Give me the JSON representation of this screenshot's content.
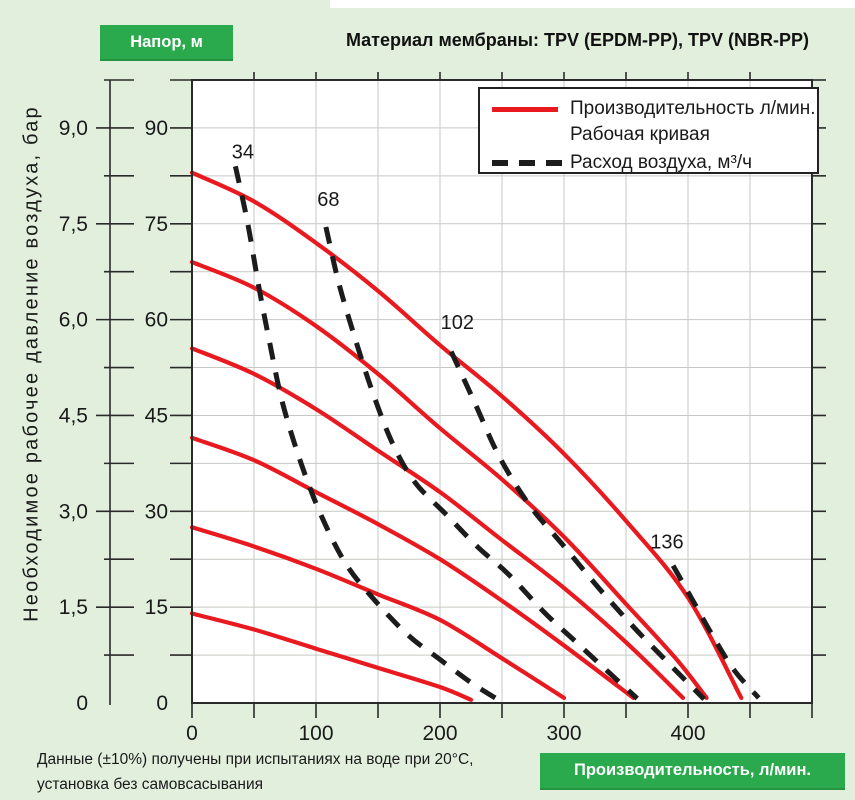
{
  "colors": {
    "background": "#e2efdd",
    "badge_green": "#2aa94d",
    "curve_red": "#e8191f",
    "dash_black": "#1c1c1c",
    "grid_gray": "#c6c9c4"
  },
  "header": {
    "head_badge": "Напор, м",
    "title": "Материал мембраны: TPV (EPDM-PP), TPV (NBR-PP)"
  },
  "legend": {
    "solid_label_line1": "Производительность л/мин.",
    "solid_label_line2": "Рабочая кривая",
    "dashed_label": "Расход воздуха, м³/ч"
  },
  "footnote": {
    "line1": "Данные (±10%) получены при испытаниях на воде при 20°C,",
    "line2": "установка без самовсасывания"
  },
  "x_badge": "Производительность, л/мин.",
  "chart_data": {
    "type": "line",
    "title": "Материал мембраны: TPV (EPDM-PP), TPV (NBR-PP)",
    "x_axis": {
      "label": "Производительность, л/мин.",
      "range": [
        0,
        500
      ],
      "major_ticks": [
        0,
        100,
        200,
        300,
        400
      ],
      "tick_labels": [
        "0",
        "100",
        "200",
        "300",
        "400"
      ],
      "minor_step": 50
    },
    "y_axis_pressure": {
      "label": "Необходимое рабочее давление воздуха, бар",
      "range": [
        0,
        9.75
      ],
      "major_ticks": [
        9.0,
        7.5,
        6.0,
        4.5,
        3.0,
        1.5,
        0
      ],
      "tick_labels": [
        "9,0",
        "7,5",
        "6,0",
        "4,5",
        "3,0",
        "1,5",
        "0"
      ],
      "minor_step": 0.75
    },
    "y_axis_head": {
      "label": "Напор, м",
      "major_ticks": [
        90,
        75,
        60,
        45,
        30,
        15,
        0
      ],
      "tick_labels": [
        "90",
        "75",
        "60",
        "45",
        "30",
        "15",
        "0"
      ]
    },
    "grid": {
      "x_step": 50,
      "y_step": 0.75,
      "on": true
    },
    "legend_position": "top-right",
    "solid_series": {
      "name": "Рабочая кривая — производительность, л/мин. (x) vs давление воздуха, бар (y)",
      "color": "#e8191f",
      "curves": [
        [
          [
            0,
            8.3
          ],
          [
            50,
            7.85
          ],
          [
            100,
            7.2
          ],
          [
            150,
            6.45
          ],
          [
            200,
            5.6
          ],
          [
            250,
            4.8
          ],
          [
            300,
            3.9
          ],
          [
            350,
            2.85
          ],
          [
            400,
            1.65
          ],
          [
            443,
            0.08
          ]
        ],
        [
          [
            0,
            6.9
          ],
          [
            50,
            6.5
          ],
          [
            100,
            5.9
          ],
          [
            150,
            5.15
          ],
          [
            200,
            4.3
          ],
          [
            250,
            3.5
          ],
          [
            300,
            2.6
          ],
          [
            350,
            1.55
          ],
          [
            390,
            0.7
          ],
          [
            415,
            0.08
          ]
        ],
        [
          [
            0,
            5.55
          ],
          [
            50,
            5.15
          ],
          [
            100,
            4.6
          ],
          [
            150,
            3.95
          ],
          [
            200,
            3.3
          ],
          [
            250,
            2.55
          ],
          [
            300,
            1.8
          ],
          [
            350,
            0.95
          ],
          [
            396,
            0.08
          ]
        ],
        [
          [
            0,
            4.15
          ],
          [
            50,
            3.8
          ],
          [
            100,
            3.3
          ],
          [
            150,
            2.8
          ],
          [
            200,
            2.25
          ],
          [
            250,
            1.6
          ],
          [
            300,
            0.9
          ],
          [
            356,
            0.08
          ]
        ],
        [
          [
            0,
            2.75
          ],
          [
            50,
            2.45
          ],
          [
            100,
            2.1
          ],
          [
            150,
            1.7
          ],
          [
            200,
            1.3
          ],
          [
            250,
            0.7
          ],
          [
            300,
            0.08
          ]
        ],
        [
          [
            0,
            1.4
          ],
          [
            50,
            1.15
          ],
          [
            100,
            0.85
          ],
          [
            150,
            0.55
          ],
          [
            200,
            0.25
          ],
          [
            225,
            0.05
          ]
        ]
      ]
    },
    "dashed_series": {
      "name": "Расход воздуха, м³/ч",
      "color": "#1c1c1c",
      "curves": [
        {
          "label": "34",
          "label_pos": [
            41,
            8.52
          ],
          "points": [
            [
              35,
              8.4
            ],
            [
              45,
              7.5
            ],
            [
              54,
              6.5
            ],
            [
              62,
              5.7
            ],
            [
              73,
              4.7
            ],
            [
              88,
              3.75
            ],
            [
              105,
              2.9
            ],
            [
              125,
              2.15
            ],
            [
              150,
              1.55
            ],
            [
              175,
              1.05
            ],
            [
              200,
              0.68
            ],
            [
              225,
              0.32
            ],
            [
              247,
              0.05
            ]
          ]
        },
        {
          "label": "68",
          "label_pos": [
            110,
            7.78
          ],
          "points": [
            [
              108,
              7.45
            ],
            [
              118,
              6.6
            ],
            [
              130,
              5.8
            ],
            [
              145,
              4.9
            ],
            [
              162,
              4.05
            ],
            [
              180,
              3.45
            ],
            [
              205,
              2.95
            ],
            [
              230,
              2.45
            ],
            [
              256,
              2.0
            ],
            [
              285,
              1.4
            ],
            [
              310,
              0.95
            ],
            [
              335,
              0.5
            ],
            [
              359,
              0.07
            ]
          ]
        },
        {
          "label": "102",
          "label_pos": [
            214,
            5.85
          ],
          "points": [
            [
              209,
              5.5
            ],
            [
              228,
              4.7
            ],
            [
              248,
              3.85
            ],
            [
              272,
              3.1
            ],
            [
              298,
              2.5
            ],
            [
              328,
              1.8
            ],
            [
              358,
              1.15
            ],
            [
              388,
              0.55
            ],
            [
              413,
              0.06
            ]
          ]
        },
        {
          "label": "136",
          "label_pos": [
            383,
            2.42
          ],
          "points": [
            [
              388,
              2.15
            ],
            [
              404,
              1.6
            ],
            [
              420,
              1.05
            ],
            [
              437,
              0.52
            ],
            [
              457,
              0.08
            ]
          ]
        }
      ]
    }
  }
}
